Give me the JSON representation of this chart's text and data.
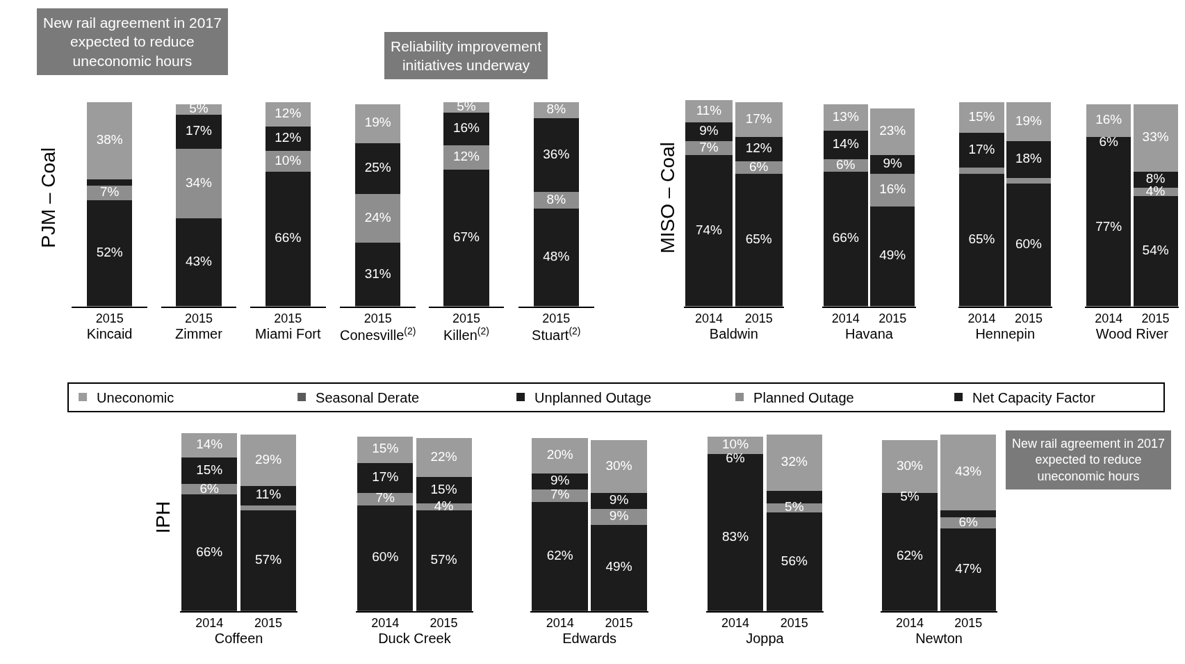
{
  "chart_data": [
    {
      "type": "bar",
      "stacked": true,
      "ylabel": "PJM – Coal",
      "xlabel": "Kincaid",
      "categories": [
        "2015"
      ],
      "legend": "bottom",
      "annotations": [
        "New rail agreement in 2017 expected to reduce uneconomic hours"
      ],
      "series": [
        {
          "name": "Net Capacity Factor",
          "color": "#1c1c1c",
          "values": [
            52
          ],
          "value_labels": [
            "52%"
          ]
        },
        {
          "name": "Planned Outage",
          "color": "#8e8e8e",
          "values": [
            7
          ],
          "value_labels": [
            "7%"
          ]
        },
        {
          "name": "Unplanned Outage",
          "color": "#1c1c1c",
          "values": [
            3
          ],
          "value_labels": [
            null
          ]
        },
        {
          "name": "Seasonal Derate",
          "color": "#5a5a5a",
          "values": [
            null
          ],
          "value_labels": [
            null
          ]
        },
        {
          "name": "Uneconomic",
          "color": "#9c9c9c",
          "values": [
            38
          ],
          "value_labels": [
            "38%"
          ]
        }
      ]
    },
    {
      "type": "bar",
      "stacked": true,
      "xlabel": "Zimmer",
      "categories": [
        "2015"
      ],
      "series": [
        {
          "color": "#1c1c1c",
          "values": [
            43
          ],
          "value_labels": [
            "43%"
          ]
        },
        {
          "color": "#8e8e8e",
          "values": [
            34
          ],
          "value_labels": [
            "34%"
          ]
        },
        {
          "color": "#1c1c1c",
          "values": [
            17
          ],
          "value_labels": [
            "17%"
          ]
        },
        {
          "color": "#9c9c9c",
          "values": [
            5
          ],
          "value_labels": [
            "5%"
          ]
        }
      ]
    },
    {
      "type": "bar",
      "stacked": true,
      "xlabel": "Miami Fort",
      "categories": [
        "2015"
      ],
      "series": [
        {
          "color": "#1c1c1c",
          "values": [
            66
          ],
          "value_labels": [
            "66%"
          ]
        },
        {
          "color": "#8e8e8e",
          "values": [
            10
          ],
          "value_labels": [
            "10%"
          ]
        },
        {
          "color": "#1c1c1c",
          "values": [
            12
          ],
          "value_labels": [
            "12%"
          ]
        },
        {
          "color": "#9c9c9c",
          "values": [
            12
          ],
          "value_labels": [
            "12%"
          ]
        }
      ]
    },
    {
      "type": "bar",
      "stacked": true,
      "xlabel": "Conesville$^{(2)}$",
      "categories": [
        "2015"
      ],
      "annotations": [
        "Reliability improvement initiatives underway"
      ],
      "series": [
        {
          "color": "#1c1c1c",
          "values": [
            31
          ],
          "value_labels": [
            "31%"
          ]
        },
        {
          "color": "#8e8e8e",
          "values": [
            24
          ],
          "value_labels": [
            "24%"
          ]
        },
        {
          "color": "#1c1c1c",
          "values": [
            25
          ],
          "value_labels": [
            "25%"
          ]
        },
        {
          "color": "#9c9c9c",
          "values": [
            19
          ],
          "value_labels": [
            "19%"
          ]
        }
      ]
    },
    {
      "type": "bar",
      "stacked": true,
      "xlabel": "Killen$^{(2)}$",
      "categories": [
        "2015"
      ],
      "series": [
        {
          "color": "#1c1c1c",
          "values": [
            67
          ],
          "value_labels": [
            "67%"
          ]
        },
        {
          "color": "#8e8e8e",
          "values": [
            12
          ],
          "value_labels": [
            "12%"
          ]
        },
        {
          "color": "#1c1c1c",
          "values": [
            16
          ],
          "value_labels": [
            "16%"
          ]
        },
        {
          "color": "#9c9c9c",
          "values": [
            5
          ],
          "value_labels": [
            "5%"
          ]
        }
      ]
    },
    {
      "type": "bar",
      "stacked": true,
      "xlabel": "Stuart$^{(2)}$",
      "categories": [
        "2015"
      ],
      "series": [
        {
          "color": "#1c1c1c",
          "values": [
            48
          ],
          "value_labels": [
            "48%"
          ]
        },
        {
          "color": "#8e8e8e",
          "values": [
            8
          ],
          "value_labels": [
            "8%"
          ]
        },
        {
          "color": "#1c1c1c",
          "values": [
            36
          ],
          "value_labels": [
            "36%"
          ]
        },
        {
          "color": "#9c9c9c",
          "values": [
            8
          ],
          "value_labels": [
            "8%"
          ]
        }
      ]
    },
    {
      "type": "bar",
      "stacked": true,
      "ylabel": "MISO – Coal",
      "xlabel": "Baldwin",
      "categories": [
        "2014",
        "2015"
      ],
      "series": [
        {
          "color": "#1c1c1c",
          "values": [
            74,
            65
          ],
          "value_labels": [
            "74%",
            "65%"
          ]
        },
        {
          "color": "#8e8e8e",
          "values": [
            7,
            6
          ],
          "value_labels": [
            "7%",
            "6%"
          ]
        },
        {
          "color": "#1c1c1c",
          "values": [
            9,
            12
          ],
          "value_labels": [
            "9%",
            "12%"
          ]
        },
        {
          "color": "#9c9c9c",
          "values": [
            11,
            17
          ],
          "value_labels": [
            "11%",
            "17%"
          ]
        }
      ]
    },
    {
      "type": "bar",
      "stacked": true,
      "xlabel": "Havana",
      "categories": [
        "2014",
        "2015"
      ],
      "series": [
        {
          "color": "#1c1c1c",
          "values": [
            66,
            49
          ],
          "value_labels": [
            "66%",
            "49%"
          ]
        },
        {
          "color": "#8e8e8e",
          "values": [
            6,
            16
          ],
          "value_labels": [
            "6%",
            "16%"
          ]
        },
        {
          "color": "#1c1c1c",
          "values": [
            14,
            9
          ],
          "value_labels": [
            "14%",
            "9%"
          ]
        },
        {
          "color": "#9c9c9c",
          "values": [
            13,
            23
          ],
          "value_labels": [
            "13%",
            "23%"
          ]
        }
      ]
    },
    {
      "type": "bar",
      "stacked": true,
      "xlabel": "Hennepin",
      "categories": [
        "2014",
        "2015"
      ],
      "series": [
        {
          "color": "#1c1c1c",
          "values": [
            65,
            60
          ],
          "value_labels": [
            "65%",
            "60%"
          ]
        },
        {
          "color": "#8e8e8e",
          "values": [
            3,
            3
          ],
          "value_labels": [
            null,
            null
          ]
        },
        {
          "color": "#1c1c1c",
          "values": [
            17,
            18
          ],
          "value_labels": [
            "17%",
            "18%"
          ]
        },
        {
          "color": "#9c9c9c",
          "values": [
            15,
            19
          ],
          "value_labels": [
            "15%",
            "19%"
          ]
        }
      ]
    },
    {
      "type": "bar",
      "stacked": true,
      "xlabel": "Wood River",
      "categories": [
        "2014",
        "2015"
      ],
      "series": [
        {
          "color": "#1c1c1c",
          "values": [
            77,
            54
          ],
          "value_labels": [
            "77%",
            "54%"
          ]
        },
        {
          "color": "#8e8e8e",
          "values": [
            null,
            4
          ],
          "value_labels": [
            null,
            "4%"
          ]
        },
        {
          "color": "#1c1c1c",
          "values": [
            6,
            8
          ],
          "value_labels": [
            "6%",
            "8%"
          ]
        },
        {
          "color": "#9c9c9c",
          "values": [
            16,
            33
          ],
          "value_labels": [
            "16%",
            "33%"
          ]
        }
      ]
    },
    {
      "type": "bar",
      "stacked": true,
      "ylabel": "IPH",
      "xlabel": "Coffeen",
      "categories": [
        "2014",
        "2015"
      ],
      "series": [
        {
          "color": "#1c1c1c",
          "values": [
            66,
            57
          ],
          "value_labels": [
            "66%",
            "57%"
          ]
        },
        {
          "color": "#8e8e8e",
          "values": [
            6,
            3
          ],
          "value_labels": [
            "6%",
            null
          ]
        },
        {
          "color": "#1c1c1c",
          "values": [
            15,
            11
          ],
          "value_labels": [
            "15%",
            "11%"
          ]
        },
        {
          "color": "#9c9c9c",
          "values": [
            14,
            29
          ],
          "value_labels": [
            "14%",
            "29%"
          ]
        }
      ]
    },
    {
      "type": "bar",
      "stacked": true,
      "xlabel": "Duck Creek",
      "categories": [
        "2014",
        "2015"
      ],
      "series": [
        {
          "color": "#1c1c1c",
          "values": [
            60,
            57
          ],
          "value_labels": [
            "60%",
            "57%"
          ]
        },
        {
          "color": "#8e8e8e",
          "values": [
            7,
            4
          ],
          "value_labels": [
            "7%",
            "4%"
          ]
        },
        {
          "color": "#1c1c1c",
          "values": [
            17,
            15
          ],
          "value_labels": [
            "17%",
            "15%"
          ]
        },
        {
          "color": "#9c9c9c",
          "values": [
            15,
            22
          ],
          "value_labels": [
            "15%",
            "22%"
          ]
        }
      ]
    },
    {
      "type": "bar",
      "stacked": true,
      "xlabel": "Edwards",
      "categories": [
        "2014",
        "2015"
      ],
      "series": [
        {
          "color": "#1c1c1c",
          "values": [
            62,
            49
          ],
          "value_labels": [
            "62%",
            "49%"
          ]
        },
        {
          "color": "#8e8e8e",
          "values": [
            7,
            9
          ],
          "value_labels": [
            "7%",
            "9%"
          ]
        },
        {
          "color": "#1c1c1c",
          "values": [
            9,
            9
          ],
          "value_labels": [
            "9%",
            "9%"
          ]
        },
        {
          "color": "#9c9c9c",
          "values": [
            20,
            30
          ],
          "value_labels": [
            "20%",
            "30%"
          ]
        }
      ]
    },
    {
      "type": "bar",
      "stacked": true,
      "xlabel": "Joppa",
      "categories": [
        "2014",
        "2015"
      ],
      "series": [
        {
          "color": "#1c1c1c",
          "values": [
            83,
            56
          ],
          "value_labels": [
            "83%",
            "56%"
          ]
        },
        {
          "color": "#8e8e8e",
          "values": [
            null,
            5
          ],
          "value_labels": [
            null,
            "5%"
          ]
        },
        {
          "color": "#1c1c1c",
          "values": [
            6,
            7
          ],
          "value_labels": [
            "6%",
            null
          ]
        },
        {
          "color": "#9c9c9c",
          "values": [
            10,
            32
          ],
          "value_labels": [
            "10%",
            "32%"
          ]
        }
      ]
    },
    {
      "type": "bar",
      "stacked": true,
      "xlabel": "Newton",
      "categories": [
        "2014",
        "2015"
      ],
      "annotations": [
        "New rail agreement in 2017 expected to reduce uneconomic hours"
      ],
      "series": [
        {
          "color": "#1c1c1c",
          "values": [
            62,
            47
          ],
          "value_labels": [
            "62%",
            "47%"
          ]
        },
        {
          "color": "#8e8e8e",
          "values": [
            null,
            6
          ],
          "value_labels": [
            null,
            "6%"
          ]
        },
        {
          "color": "#1c1c1c",
          "values": [
            5,
            4
          ],
          "value_labels": [
            "5%",
            null
          ]
        },
        {
          "color": "#9c9c9c",
          "values": [
            30,
            43
          ],
          "value_labels": [
            "30%",
            "43%"
          ]
        }
      ]
    }
  ]
}
